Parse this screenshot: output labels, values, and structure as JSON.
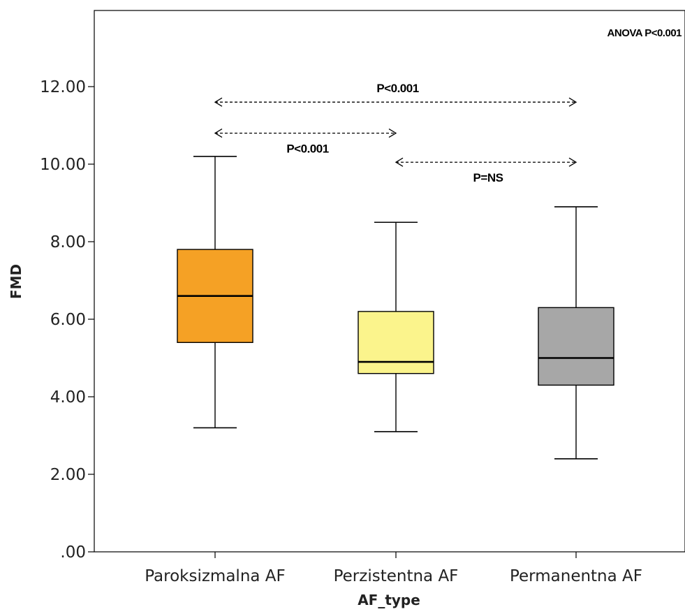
{
  "chart_data": {
    "type": "boxplot",
    "xlabel": "AF_type",
    "ylabel": "FMD",
    "ylim": [
      0,
      14
    ],
    "yticks": [
      0,
      2,
      4,
      6,
      8,
      10,
      12
    ],
    "ytick_labels": [
      ".00",
      "2.00",
      "4.00",
      "6.00",
      "8.00",
      "10.00",
      "12.00"
    ],
    "categories": [
      "Paroksizmalna AF",
      "Perzistentna AF",
      "Permanentna AF"
    ],
    "boxes": [
      {
        "category": "Paroksizmalna AF",
        "min": 3.2,
        "q1": 5.4,
        "median": 6.6,
        "q3": 7.8,
        "max": 10.2,
        "color": "#f5a125"
      },
      {
        "category": "Perzistentna AF",
        "min": 3.1,
        "q1": 4.6,
        "median": 4.9,
        "q3": 6.2,
        "max": 8.5,
        "color": "#fbf48c"
      },
      {
        "category": "Permanentna AF",
        "min": 2.4,
        "q1": 4.3,
        "median": 5.0,
        "q3": 6.3,
        "max": 8.9,
        "color": "#a7a7a7"
      }
    ],
    "comparisons": [
      {
        "from": 0,
        "to": 2,
        "y": 11.6,
        "label": "P<0.001",
        "label_position": "above"
      },
      {
        "from": 0,
        "to": 1,
        "y": 10.8,
        "label": "P<0.001",
        "label_position": "below"
      },
      {
        "from": 1,
        "to": 2,
        "y": 10.05,
        "label": "P=NS",
        "label_position": "below"
      }
    ],
    "annotation": "ANOVA P<0.001",
    "grid": false,
    "legend": "none"
  }
}
